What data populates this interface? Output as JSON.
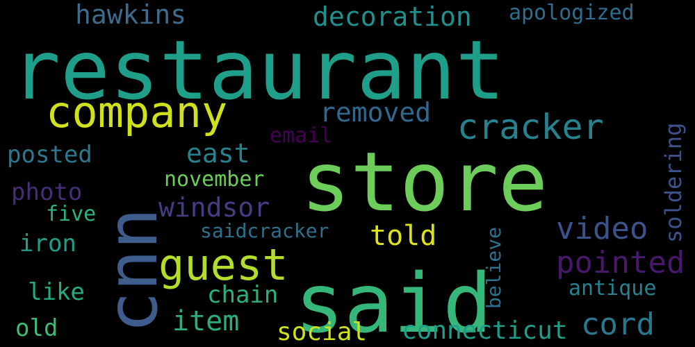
{
  "words": [
    {
      "text": "restaurant",
      "color": "#1f9e89",
      "rotate": false
    },
    {
      "text": "store",
      "color": "#6ccd5a",
      "rotate": false
    },
    {
      "text": "said",
      "color": "#35b779",
      "rotate": false
    },
    {
      "text": "cnn",
      "color": "#3e5c8c",
      "rotate": true
    },
    {
      "text": "company",
      "color": "#d0e11c",
      "rotate": false
    },
    {
      "text": "guest",
      "color": "#b3dc2b",
      "rotate": false
    },
    {
      "text": "cracker",
      "color": "#26828e",
      "rotate": false
    },
    {
      "text": "decoration",
      "color": "#21908d",
      "rotate": false
    },
    {
      "text": "hawkins",
      "color": "#3e6a8b",
      "rotate": false
    },
    {
      "text": "apologized",
      "color": "#2e6e8e",
      "rotate": false
    },
    {
      "text": "removed",
      "color": "#31688e",
      "rotate": false
    },
    {
      "text": "east",
      "color": "#26828e",
      "rotate": false
    },
    {
      "text": "windsor",
      "color": "#433e85",
      "rotate": false
    },
    {
      "text": "video",
      "color": "#3b528b",
      "rotate": false
    },
    {
      "text": "pointed",
      "color": "#48186a",
      "rotate": false
    },
    {
      "text": "told",
      "color": "#dde318",
      "rotate": false
    },
    {
      "text": "item",
      "color": "#29af7f",
      "rotate": false
    },
    {
      "text": "cord",
      "color": "#2a788e",
      "rotate": false
    },
    {
      "text": "connecticut",
      "color": "#1f9e89",
      "rotate": false
    },
    {
      "text": "social",
      "color": "#d0e11c",
      "rotate": false
    },
    {
      "text": "chain",
      "color": "#2db27d",
      "rotate": false
    },
    {
      "text": "antique",
      "color": "#26828e",
      "rotate": false
    },
    {
      "text": "soldering",
      "color": "#3b528b",
      "rotate": true
    },
    {
      "text": "believe",
      "color": "#2c728e",
      "rotate": true
    },
    {
      "text": "email",
      "color": "#440154",
      "rotate": false
    },
    {
      "text": "posted",
      "color": "#2a788e",
      "rotate": false
    },
    {
      "text": "november",
      "color": "#6ccd5a",
      "rotate": false
    },
    {
      "text": "photo",
      "color": "#472c7a",
      "rotate": false
    },
    {
      "text": "saidcracker",
      "color": "#2c728e",
      "rotate": false
    },
    {
      "text": "five",
      "color": "#2db27d",
      "rotate": false
    },
    {
      "text": "iron",
      "color": "#1f9e89",
      "rotate": false
    },
    {
      "text": "like",
      "color": "#25ab82",
      "rotate": false
    },
    {
      "text": "old",
      "color": "#3dbc74",
      "rotate": false
    }
  ]
}
